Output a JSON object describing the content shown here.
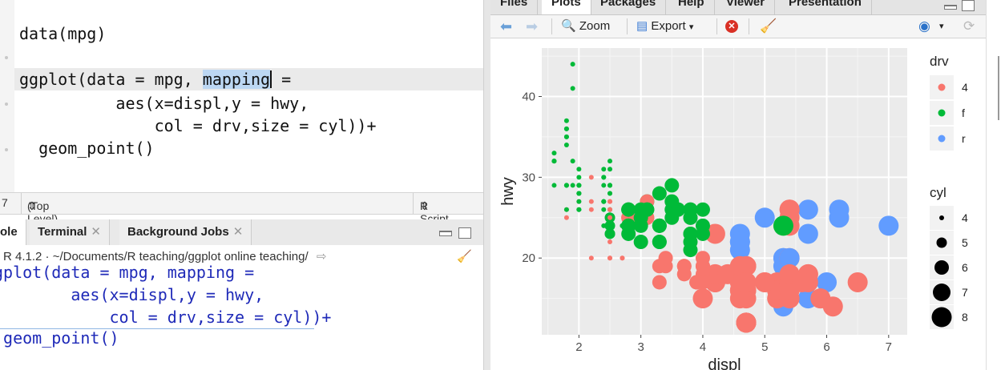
{
  "editor": {
    "lines": [
      {
        "text": "data(mpg)"
      },
      {
        "pre": "ggplot(data = mpg, ",
        "sel": "mapping",
        "post": " ="
      },
      {
        "text": "          aes(x=displ,y = hwy,"
      },
      {
        "text": "              col = drv,size = cyl))+"
      },
      {
        "text": "  geom_point()"
      }
    ]
  },
  "status": {
    "line": "7",
    "scope": "(Top Level)",
    "filetype": "R Script"
  },
  "console_tabs": [
    {
      "label": "ole"
    },
    {
      "label": "Terminal"
    },
    {
      "label": "Background Jobs"
    }
  ],
  "console": {
    "path": "R 4.1.2 · ~/Documents/R teaching/ggplot online teaching/",
    "lines": [
      "gplot(data = mpg, mapping =",
      "        aes(x=displ,y = hwy,",
      "            col = drv,size = cyl))+",
      " geom_point()"
    ]
  },
  "plot_tabs": [
    "Files",
    "Plots",
    "Packages",
    "Help",
    "Viewer",
    "Presentation"
  ],
  "toolbar": {
    "zoom": "Zoom",
    "export": "Export"
  },
  "colors": {
    "r4": "#f8766d",
    "f": "#00ba38",
    "r": "#619cff",
    "panel": "#ebebeb"
  },
  "chart_data": {
    "type": "scatter",
    "xlabel": "displ",
    "ylabel": "hwy",
    "xlim": [
      1.4,
      7.3
    ],
    "ylim": [
      10.5,
      46
    ],
    "xticks": [
      2,
      3,
      4,
      5,
      6,
      7
    ],
    "yticks": [
      20,
      30,
      40
    ],
    "legend_color": {
      "title": "drv",
      "entries": [
        "4",
        "f",
        "r"
      ]
    },
    "legend_size": {
      "title": "cyl",
      "entries": [
        "4",
        "5",
        "6",
        "7",
        "8"
      ]
    },
    "points": [
      [
        1.8,
        29,
        "f",
        4
      ],
      [
        1.8,
        29,
        "f",
        4
      ],
      [
        2.0,
        31,
        "f",
        4
      ],
      [
        2.0,
        30,
        "f",
        4
      ],
      [
        2.8,
        26,
        "f",
        6
      ],
      [
        2.8,
        26,
        "f",
        6
      ],
      [
        3.1,
        27,
        "f",
        6
      ],
      [
        1.8,
        26,
        "4",
        4
      ],
      [
        1.8,
        25,
        "4",
        4
      ],
      [
        2.0,
        28,
        "4",
        4
      ],
      [
        2.0,
        27,
        "4",
        4
      ],
      [
        2.8,
        25,
        "4",
        6
      ],
      [
        2.8,
        25,
        "4",
        6
      ],
      [
        3.1,
        25,
        "4",
        6
      ],
      [
        3.1,
        27,
        "4",
        6
      ],
      [
        2.8,
        25,
        "4",
        6
      ],
      [
        3.1,
        25,
        "4",
        6
      ],
      [
        4.2,
        23,
        "4",
        8
      ],
      [
        5.3,
        20,
        "r",
        8
      ],
      [
        5.3,
        15,
        "r",
        8
      ],
      [
        5.3,
        20,
        "r",
        8
      ],
      [
        5.7,
        17,
        "r",
        8
      ],
      [
        6.0,
        17,
        "r",
        8
      ],
      [
        5.7,
        26,
        "r",
        8
      ],
      [
        5.7,
        23,
        "r",
        8
      ],
      [
        6.2,
        26,
        "r",
        8
      ],
      [
        6.2,
        25,
        "r",
        8
      ],
      [
        7.0,
        24,
        "r",
        8
      ],
      [
        5.3,
        19,
        "r",
        8
      ],
      [
        5.3,
        14,
        "r",
        8
      ],
      [
        5.7,
        15,
        "r",
        8
      ],
      [
        6.5,
        17,
        "4",
        8
      ],
      [
        2.4,
        27,
        "f",
        4
      ],
      [
        2.4,
        30,
        "f",
        4
      ],
      [
        3.1,
        26,
        "f",
        6
      ],
      [
        3.5,
        29,
        "f",
        6
      ],
      [
        3.6,
        26,
        "f",
        6
      ],
      [
        2.4,
        24,
        "f",
        4
      ],
      [
        3.0,
        24,
        "f",
        6
      ],
      [
        3.3,
        22,
        "f",
        6
      ],
      [
        3.3,
        22,
        "f",
        6
      ],
      [
        3.3,
        24,
        "f",
        6
      ],
      [
        3.3,
        24,
        "f",
        6
      ],
      [
        3.3,
        24,
        "f",
        6
      ],
      [
        3.8,
        22,
        "f",
        6
      ],
      [
        3.8,
        21,
        "f",
        6
      ],
      [
        3.8,
        23,
        "f",
        6
      ],
      [
        4.0,
        23,
        "f",
        6
      ],
      [
        3.7,
        19,
        "4",
        6
      ],
      [
        3.7,
        18,
        "4",
        6
      ],
      [
        3.9,
        17,
        "4",
        6
      ],
      [
        3.9,
        17,
        "4",
        6
      ],
      [
        4.7,
        19,
        "4",
        8
      ],
      [
        4.7,
        19,
        "4",
        8
      ],
      [
        4.7,
        12,
        "4",
        8
      ],
      [
        5.2,
        17,
        "4",
        8
      ],
      [
        5.2,
        15,
        "4",
        8
      ],
      [
        3.9,
        17,
        "4",
        6
      ],
      [
        4.7,
        17,
        "4",
        8
      ],
      [
        4.7,
        12,
        "4",
        8
      ],
      [
        4.7,
        17,
        "4",
        8
      ],
      [
        5.2,
        16,
        "4",
        8
      ],
      [
        5.7,
        18,
        "4",
        8
      ],
      [
        5.9,
        15,
        "4",
        8
      ],
      [
        4.7,
        16,
        "4",
        8
      ],
      [
        4.7,
        12,
        "4",
        8
      ],
      [
        4.7,
        17,
        "4",
        8
      ],
      [
        4.7,
        17,
        "4",
        8
      ],
      [
        4.7,
        16,
        "4",
        8
      ],
      [
        4.7,
        12,
        "4",
        8
      ],
      [
        4.7,
        15,
        "4",
        8
      ],
      [
        5.2,
        16,
        "4",
        8
      ],
      [
        5.7,
        17,
        "4",
        8
      ],
      [
        5.9,
        15,
        "4",
        8
      ],
      [
        4.6,
        17,
        "4",
        8
      ],
      [
        5.4,
        17,
        "4",
        8
      ],
      [
        5.4,
        18,
        "4",
        8
      ],
      [
        4.0,
        17,
        "4",
        6
      ],
      [
        4.0,
        19,
        "4",
        6
      ],
      [
        4.0,
        17,
        "4",
        6
      ],
      [
        4.0,
        19,
        "4",
        6
      ],
      [
        4.6,
        19,
        "4",
        8
      ],
      [
        5.0,
        17,
        "4",
        8
      ],
      [
        4.2,
        17,
        "4",
        8
      ],
      [
        4.2,
        17,
        "4",
        8
      ],
      [
        4.6,
        16,
        "4",
        8
      ],
      [
        4.6,
        16,
        "4",
        8
      ],
      [
        4.6,
        17,
        "4",
        8
      ],
      [
        5.4,
        15,
        "4",
        8
      ],
      [
        5.4,
        17,
        "4",
        8
      ],
      [
        5.4,
        26,
        "4",
        8
      ],
      [
        5.4,
        25,
        "4",
        8
      ],
      [
        5.4,
        26,
        "4",
        8
      ],
      [
        5.4,
        24,
        "4",
        8
      ],
      [
        5.4,
        20,
        "4",
        8
      ],
      [
        3.8,
        26,
        "f",
        6
      ],
      [
        3.8,
        25,
        "f",
        6
      ],
      [
        4.0,
        26,
        "f",
        6
      ],
      [
        4.0,
        24,
        "f",
        6
      ],
      [
        4.6,
        21,
        "r",
        8
      ],
      [
        4.6,
        22,
        "r",
        8
      ],
      [
        4.6,
        23,
        "r",
        8
      ],
      [
        4.6,
        22,
        "r",
        8
      ],
      [
        5.4,
        20,
        "r",
        8
      ],
      [
        1.6,
        33,
        "f",
        4
      ],
      [
        1.6,
        32,
        "f",
        4
      ],
      [
        1.6,
        32,
        "f",
        4
      ],
      [
        1.6,
        29,
        "f",
        4
      ],
      [
        1.6,
        32,
        "f",
        4
      ],
      [
        1.8,
        34,
        "f",
        4
      ],
      [
        1.8,
        36,
        "f",
        4
      ],
      [
        1.8,
        36,
        "f",
        4
      ],
      [
        2.0,
        29,
        "f",
        4
      ],
      [
        2.4,
        26,
        "f",
        4
      ],
      [
        2.4,
        27,
        "f",
        4
      ],
      [
        2.4,
        30,
        "f",
        4
      ],
      [
        2.4,
        31,
        "f",
        4
      ],
      [
        2.5,
        26,
        "f",
        4
      ],
      [
        2.5,
        26,
        "f",
        4
      ],
      [
        3.3,
        28,
        "f",
        6
      ],
      [
        2.0,
        26,
        "f",
        4
      ],
      [
        2.0,
        29,
        "f",
        4
      ],
      [
        2.0,
        28,
        "f",
        4
      ],
      [
        2.0,
        27,
        "f",
        4
      ],
      [
        2.7,
        24,
        "f",
        4
      ],
      [
        2.7,
        24,
        "f",
        4
      ],
      [
        2.7,
        24,
        "f",
        4
      ],
      [
        3.0,
        22,
        "f",
        6
      ],
      [
        3.7,
        19,
        "4",
        6
      ],
      [
        4.0,
        20,
        "4",
        6
      ],
      [
        4.7,
        17,
        "4",
        8
      ],
      [
        4.7,
        12,
        "4",
        8
      ],
      [
        4.7,
        19,
        "4",
        8
      ],
      [
        5.7,
        18,
        "4",
        8
      ],
      [
        6.1,
        14,
        "4",
        8
      ],
      [
        4.0,
        15,
        "4",
        8
      ],
      [
        4.2,
        18,
        "4",
        8
      ],
      [
        4.4,
        18,
        "4",
        8
      ],
      [
        4.6,
        15,
        "4",
        8
      ],
      [
        5.4,
        17,
        "4",
        8
      ],
      [
        5.4,
        16,
        "4",
        8
      ],
      [
        5.4,
        18,
        "4",
        8
      ],
      [
        4.0,
        17,
        "4",
        6
      ],
      [
        4.0,
        19,
        "4",
        6
      ],
      [
        4.6,
        19,
        "4",
        8
      ],
      [
        5.0,
        17,
        "4",
        8
      ],
      [
        2.4,
        29,
        "f",
        4
      ],
      [
        2.4,
        27,
        "f",
        4
      ],
      [
        2.5,
        31,
        "f",
        4
      ],
      [
        2.5,
        32,
        "f",
        4
      ],
      [
        3.5,
        27,
        "f",
        6
      ],
      [
        3.5,
        26,
        "f",
        6
      ],
      [
        3.0,
        26,
        "f",
        6
      ],
      [
        3.0,
        25,
        "f",
        6
      ],
      [
        3.5,
        25,
        "f",
        6
      ],
      [
        3.3,
        17,
        "4",
        6
      ],
      [
        3.3,
        19,
        "4",
        6
      ],
      [
        4.0,
        18,
        "4",
        6
      ],
      [
        5.6,
        17,
        "4",
        8
      ],
      [
        3.1,
        26,
        "f",
        6
      ],
      [
        3.8,
        23,
        "f",
        6
      ],
      [
        3.8,
        26,
        "f",
        6
      ],
      [
        3.8,
        25,
        "f",
        6
      ],
      [
        5.3,
        24,
        "f",
        8
      ],
      [
        2.5,
        27,
        "4",
        4
      ],
      [
        2.5,
        25,
        "4",
        4
      ],
      [
        2.5,
        27,
        "4",
        4
      ],
      [
        2.5,
        20,
        "4",
        4
      ],
      [
        2.5,
        20,
        "4",
        4
      ],
      [
        2.5,
        22,
        "4",
        4
      ],
      [
        2.2,
        20,
        "4",
        4
      ],
      [
        2.2,
        26,
        "4",
        4
      ],
      [
        2.5,
        26,
        "4",
        4
      ],
      [
        2.5,
        29,
        "f",
        4
      ],
      [
        2.5,
        28,
        "f",
        4
      ],
      [
        2.2,
        27,
        "4",
        4
      ],
      [
        2.2,
        30,
        "4",
        4
      ],
      [
        2.5,
        26,
        "4",
        4
      ],
      [
        2.5,
        29,
        "f",
        4
      ],
      [
        2.5,
        28,
        "f",
        4
      ],
      [
        2.7,
        20,
        "4",
        4
      ],
      [
        2.7,
        20,
        "4",
        4
      ],
      [
        3.4,
        19,
        "4",
        6
      ],
      [
        3.4,
        20,
        "4",
        6
      ],
      [
        4.0,
        17,
        "4",
        6
      ],
      [
        4.7,
        17,
        "4",
        8
      ],
      [
        1.8,
        26,
        "f",
        4
      ],
      [
        1.8,
        35,
        "f",
        4
      ],
      [
        1.8,
        37,
        "f",
        4
      ],
      [
        1.8,
        35,
        "f",
        4
      ],
      [
        1.9,
        44,
        "f",
        4
      ],
      [
        1.9,
        41,
        "f",
        4
      ],
      [
        1.9,
        29,
        "f",
        4
      ],
      [
        2.0,
        26,
        "f",
        4
      ],
      [
        2.0,
        28,
        "f",
        4
      ],
      [
        2.0,
        29,
        "f",
        4
      ],
      [
        2.5,
        29,
        "f",
        4
      ],
      [
        2.5,
        29,
        "f",
        4
      ],
      [
        2.8,
        23,
        "f",
        6
      ],
      [
        2.8,
        24,
        "f",
        6
      ],
      [
        1.8,
        29,
        "f",
        4
      ],
      [
        2.0,
        28,
        "f",
        4
      ],
      [
        2.8,
        24,
        "f",
        6
      ],
      [
        3.6,
        26,
        "f",
        6
      ],
      [
        2.0,
        29,
        "f",
        4
      ],
      [
        1.9,
        32,
        "f",
        4
      ],
      [
        2.5,
        23,
        "f",
        5
      ],
      [
        2.5,
        24,
        "f",
        5
      ],
      [
        2.0,
        26,
        "f",
        4
      ],
      [
        2.8,
        26,
        "f",
        6
      ],
      [
        2.0,
        29,
        "f",
        4
      ],
      [
        2.0,
        28,
        "f",
        4
      ],
      [
        1.8,
        29,
        "f",
        4
      ],
      [
        2.8,
        24,
        "f",
        6
      ],
      [
        3.6,
        26,
        "f",
        6
      ],
      [
        2.5,
        25,
        "f",
        5
      ],
      [
        2.5,
        23,
        "f",
        5
      ],
      [
        5.0,
        25,
        "r",
        8
      ]
    ]
  }
}
